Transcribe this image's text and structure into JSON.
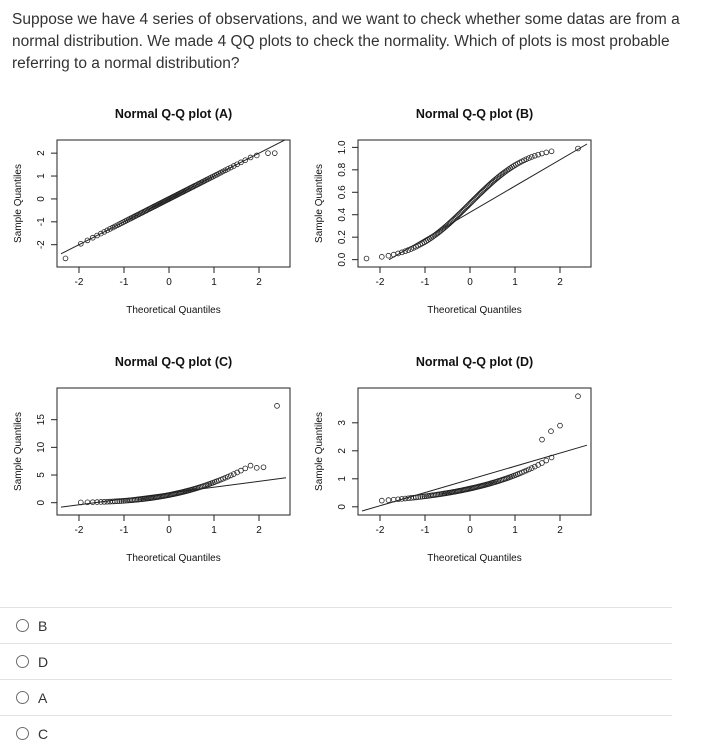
{
  "question": {
    "text": "Suppose we have 4 series of observations, and we want to check whether some datas are from a normal distribution. We made 4 QQ plots to check the normality. Which of plots is most probable referring to a normal distribution?"
  },
  "chart_data": [
    {
      "type": "scatter",
      "title": "Normal Q-Q plot (A)",
      "xlabel": "Theoretical Quantiles",
      "ylabel": "Sample Quantiles",
      "xlim": [
        -2.4,
        2.6
      ],
      "ylim": [
        -2.8,
        2.4
      ],
      "xticks": [
        "-2",
        "-1",
        "0",
        "1",
        "2"
      ],
      "yticks": [
        "-2",
        "-1",
        "0",
        "1",
        "2"
      ],
      "pattern": "normal",
      "reference_line": [
        [
          -2.4,
          -2.4
        ],
        [
          2.6,
          2.6
        ]
      ],
      "highlight_points": [
        [
          -2.3,
          -2.6
        ],
        [
          2.2,
          2.0
        ],
        [
          2.35,
          2.0
        ],
        [
          1.95,
          1.9
        ]
      ]
    },
    {
      "type": "scatter",
      "title": "Normal Q-Q plot (B)",
      "xlabel": "Theoretical Quantiles",
      "ylabel": "Sample Quantiles",
      "xlim": [
        -2.4,
        2.6
      ],
      "ylim": [
        -0.03,
        1.03
      ],
      "xticks": [
        "-2",
        "-1",
        "0",
        "1",
        "2"
      ],
      "yticks": [
        "0.0",
        "0.2",
        "0.4",
        "0.6",
        "0.8",
        "1.0"
      ],
      "pattern": "uniform",
      "reference_line": [
        [
          -1.8,
          0.0
        ],
        [
          2.6,
          1.03
        ]
      ],
      "highlight_points": [
        [
          -2.3,
          0.01
        ],
        [
          2.4,
          0.99
        ]
      ]
    },
    {
      "type": "scatter",
      "title": "Normal Q-Q plot (C)",
      "xlabel": "Theoretical Quantiles",
      "ylabel": "Sample Quantiles",
      "xlim": [
        -2.4,
        2.6
      ],
      "ylim": [
        -1.5,
        20
      ],
      "xticks": [
        "-2",
        "-1",
        "0",
        "1",
        "2"
      ],
      "yticks": [
        "0",
        "5",
        "10",
        "15"
      ],
      "pattern": "exponential",
      "reference_line": [
        [
          -2.4,
          -0.8
        ],
        [
          2.6,
          4.5
        ]
      ],
      "highlight_points": [
        [
          2.4,
          17.5
        ],
        [
          1.95,
          6.3
        ],
        [
          2.1,
          6.4
        ]
      ]
    },
    {
      "type": "scatter",
      "title": "Normal Q-Q plot (D)",
      "xlabel": "Theoretical Quantiles",
      "ylabel": "Sample Quantiles",
      "xlim": [
        -2.4,
        2.6
      ],
      "ylim": [
        -0.15,
        4.1
      ],
      "xticks": [
        "-2",
        "-1",
        "0",
        "1",
        "2"
      ],
      "yticks": [
        "0",
        "1",
        "2",
        "3"
      ],
      "pattern": "lognormal",
      "reference_line": [
        [
          -2.4,
          -0.15
        ],
        [
          2.6,
          2.2
        ]
      ],
      "highlight_points": [
        [
          2.4,
          3.95
        ],
        [
          2.0,
          2.9
        ],
        [
          1.8,
          2.7
        ],
        [
          1.6,
          2.4
        ]
      ]
    }
  ],
  "options": [
    {
      "label": "B"
    },
    {
      "label": "D"
    },
    {
      "label": "A"
    },
    {
      "label": "C"
    }
  ]
}
